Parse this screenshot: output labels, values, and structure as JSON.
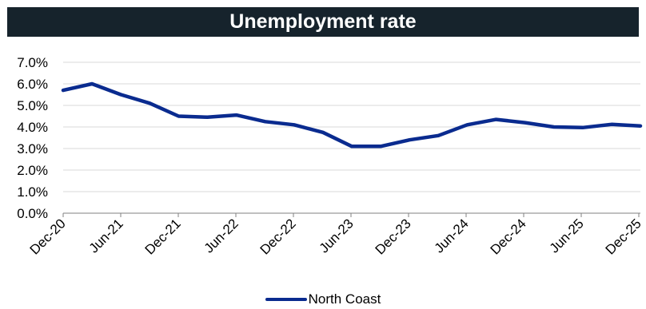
{
  "chart_data": {
    "type": "line",
    "title": "Unemployment rate",
    "xlabel": "",
    "ylabel": "",
    "ylim": [
      0,
      7
    ],
    "y_ticks": [
      "0.0%",
      "1.0%",
      "2.0%",
      "3.0%",
      "4.0%",
      "5.0%",
      "6.0%",
      "7.0%"
    ],
    "x_ticks": [
      "Dec-20",
      "Jun-21",
      "Dec-21",
      "Jun-22",
      "Dec-22",
      "Jun-23",
      "Dec-23",
      "Jun-24",
      "Dec-24",
      "Jun-25",
      "Dec-25"
    ],
    "grid": true,
    "legend_position": "bottom-center",
    "series": [
      {
        "name": "North Coast",
        "color": "#0a2b8f",
        "x": [
          "Dec-20",
          "Mar-21",
          "Jun-21",
          "Sep-21",
          "Dec-21",
          "Mar-22",
          "Jun-22",
          "Sep-22",
          "Dec-22",
          "Mar-23",
          "Jun-23",
          "Sep-23",
          "Dec-23",
          "Mar-24",
          "Jun-24",
          "Sep-24",
          "Dec-24",
          "Mar-25",
          "Jun-25",
          "Sep-25",
          "Dec-25"
        ],
        "values": [
          5.7,
          6.0,
          5.5,
          5.1,
          4.5,
          4.45,
          4.55,
          4.25,
          4.1,
          3.75,
          3.1,
          3.1,
          3.4,
          3.6,
          4.1,
          4.35,
          4.2,
          4.0,
          3.97,
          4.12,
          4.05
        ]
      }
    ]
  }
}
